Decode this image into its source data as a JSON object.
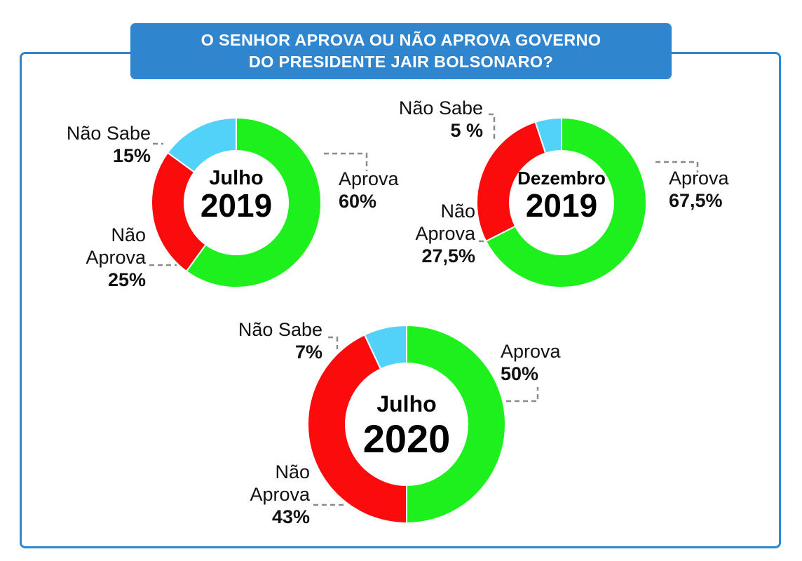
{
  "header": {
    "title_line1": "O SENHOR APROVA OU NÃO APROVA GOVERNO",
    "title_line2": "DO PRESIDENTE JAIR BOLSONARO?"
  },
  "colors": {
    "aprova": "#1ef01e",
    "nao_aprova": "#fb0b0b",
    "nao_sabe": "#53d2f9",
    "frame": "#2f86cf"
  },
  "chart_data": [
    {
      "type": "pie",
      "donut": true,
      "center_label": [
        "Julho",
        "2019"
      ],
      "slices": [
        {
          "key": "aprova",
          "label": "Aprova",
          "value": 60,
          "value_text": "60%"
        },
        {
          "key": "nao_aprova",
          "label": "Não Aprova",
          "value": 25,
          "value_text": "25%"
        },
        {
          "key": "nao_sabe",
          "label": "Não Sabe",
          "value": 15,
          "value_text": "15%"
        }
      ]
    },
    {
      "type": "pie",
      "donut": true,
      "center_label": [
        "Dezembro",
        "2019"
      ],
      "slices": [
        {
          "key": "aprova",
          "label": "Aprova",
          "value": 67.5,
          "value_text": "67,5%"
        },
        {
          "key": "nao_aprova",
          "label": "Não Aprova",
          "value": 27.5,
          "value_text": "27,5%"
        },
        {
          "key": "nao_sabe",
          "label": "Não Sabe",
          "value": 5,
          "value_text": "5 %"
        }
      ]
    },
    {
      "type": "pie",
      "donut": true,
      "center_label": [
        "Julho",
        "2020"
      ],
      "slices": [
        {
          "key": "aprova",
          "label": "Aprova",
          "value": 50,
          "value_text": "50%"
        },
        {
          "key": "nao_aprova",
          "label": "Não Aprova",
          "value": 43,
          "value_text": "43%"
        },
        {
          "key": "nao_sabe",
          "label": "Não Sabe",
          "value": 7,
          "value_text": "7%"
        }
      ]
    }
  ]
}
